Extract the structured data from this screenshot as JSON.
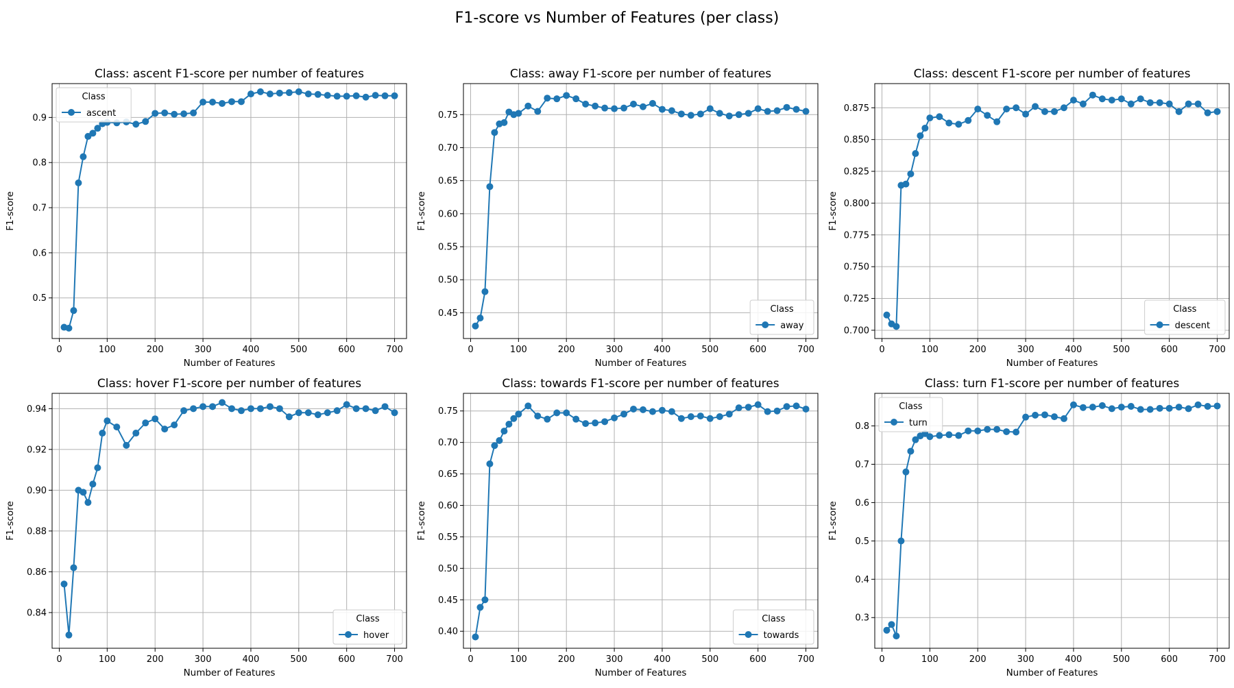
{
  "figure": {
    "title": "F1-score vs Number of Features (per class)"
  },
  "style": {
    "line_color": "#1f77b4",
    "grid_color": "#b0b0b0"
  },
  "chart_data": [
    {
      "type": "line",
      "title": "Class: ascent F1-score per number of features",
      "xlabel": "Number of Features",
      "ylabel": "F1-score",
      "xlim": [
        -15,
        725
      ],
      "ylim": [
        0.41,
        0.975
      ],
      "xticks": [
        0,
        100,
        200,
        300,
        400,
        500,
        600,
        700
      ],
      "yticks": [
        0.5,
        0.6,
        0.7,
        0.8,
        0.9
      ],
      "ytick_labels": [
        "0.5",
        "0.6",
        "0.7",
        "0.8",
        "0.9"
      ],
      "grid": true,
      "legend": {
        "title": "Class",
        "position": "top-left"
      },
      "series": [
        {
          "name": "ascent",
          "x": [
            10,
            20,
            30,
            40,
            50,
            60,
            70,
            80,
            90,
            100,
            120,
            140,
            160,
            180,
            200,
            220,
            240,
            260,
            280,
            300,
            320,
            340,
            360,
            380,
            400,
            420,
            440,
            460,
            480,
            500,
            520,
            540,
            560,
            580,
            600,
            620,
            640,
            660,
            680,
            700
          ],
          "y": [
            0.435,
            0.433,
            0.472,
            0.755,
            0.813,
            0.858,
            0.865,
            0.876,
            0.886,
            0.889,
            0.888,
            0.89,
            0.885,
            0.891,
            0.909,
            0.91,
            0.907,
            0.908,
            0.91,
            0.934,
            0.934,
            0.931,
            0.935,
            0.935,
            0.952,
            0.957,
            0.952,
            0.954,
            0.955,
            0.957,
            0.952,
            0.951,
            0.949,
            0.947,
            0.947,
            0.948,
            0.945,
            0.949,
            0.948,
            0.948
          ]
        }
      ]
    },
    {
      "type": "line",
      "title": "Class: away F1-score per number of features",
      "xlabel": "Number of Features",
      "ylabel": "F1-score",
      "xlim": [
        -15,
        725
      ],
      "ylim": [
        0.411,
        0.797
      ],
      "xticks": [
        0,
        100,
        200,
        300,
        400,
        500,
        600,
        700
      ],
      "yticks": [
        0.45,
        0.5,
        0.55,
        0.6,
        0.65,
        0.7,
        0.75
      ],
      "ytick_labels": [
        "0.45",
        "0.50",
        "0.55",
        "0.60",
        "0.65",
        "0.70",
        "0.75"
      ],
      "grid": true,
      "legend": {
        "title": "Class",
        "position": "lower-right"
      },
      "series": [
        {
          "name": "away",
          "x": [
            10,
            20,
            30,
            40,
            50,
            60,
            70,
            80,
            90,
            100,
            120,
            140,
            160,
            180,
            200,
            220,
            240,
            260,
            280,
            300,
            320,
            340,
            360,
            380,
            400,
            420,
            440,
            460,
            480,
            500,
            520,
            540,
            560,
            580,
            600,
            620,
            640,
            660,
            680,
            700
          ],
          "y": [
            0.43,
            0.442,
            0.482,
            0.641,
            0.723,
            0.736,
            0.738,
            0.754,
            0.75,
            0.752,
            0.763,
            0.755,
            0.775,
            0.774,
            0.779,
            0.774,
            0.766,
            0.763,
            0.76,
            0.759,
            0.76,
            0.766,
            0.762,
            0.767,
            0.758,
            0.756,
            0.751,
            0.749,
            0.751,
            0.759,
            0.752,
            0.748,
            0.75,
            0.752,
            0.759,
            0.755,
            0.756,
            0.761,
            0.758,
            0.755
          ]
        }
      ]
    },
    {
      "type": "line",
      "title": "Class: descent F1-score per number of features",
      "xlabel": "Number of Features",
      "ylabel": "F1-score",
      "xlim": [
        -15,
        725
      ],
      "ylim": [
        0.6935,
        0.894
      ],
      "xticks": [
        0,
        100,
        200,
        300,
        400,
        500,
        600,
        700
      ],
      "yticks": [
        0.7,
        0.725,
        0.75,
        0.775,
        0.8,
        0.825,
        0.85,
        0.875
      ],
      "ytick_labels": [
        "0.700",
        "0.725",
        "0.750",
        "0.775",
        "0.800",
        "0.825",
        "0.850",
        "0.875"
      ],
      "grid": true,
      "legend": {
        "title": "Class",
        "position": "lower-right"
      },
      "series": [
        {
          "name": "descent",
          "x": [
            10,
            20,
            30,
            40,
            50,
            60,
            70,
            80,
            90,
            100,
            120,
            140,
            160,
            180,
            200,
            220,
            240,
            260,
            280,
            300,
            320,
            340,
            360,
            380,
            400,
            420,
            440,
            460,
            480,
            500,
            520,
            540,
            560,
            580,
            600,
            620,
            640,
            660,
            680,
            700
          ],
          "y": [
            0.712,
            0.705,
            0.703,
            0.814,
            0.815,
            0.823,
            0.839,
            0.853,
            0.859,
            0.867,
            0.868,
            0.863,
            0.862,
            0.865,
            0.874,
            0.869,
            0.864,
            0.874,
            0.875,
            0.87,
            0.876,
            0.872,
            0.872,
            0.875,
            0.881,
            0.878,
            0.885,
            0.882,
            0.881,
            0.882,
            0.878,
            0.882,
            0.879,
            0.879,
            0.878,
            0.872,
            0.878,
            0.878,
            0.871,
            0.872
          ]
        }
      ]
    },
    {
      "type": "line",
      "title": "Class: hover F1-score per number of features",
      "xlabel": "Number of Features",
      "ylabel": "F1-score",
      "xlim": [
        -15,
        725
      ],
      "ylim": [
        0.8225,
        0.9475
      ],
      "xticks": [
        0,
        100,
        200,
        300,
        400,
        500,
        600,
        700
      ],
      "yticks": [
        0.84,
        0.86,
        0.88,
        0.9,
        0.92,
        0.94
      ],
      "ytick_labels": [
        "0.84",
        "0.86",
        "0.88",
        "0.90",
        "0.92",
        "0.94"
      ],
      "grid": true,
      "legend": {
        "title": "Class",
        "position": "lower-right"
      },
      "series": [
        {
          "name": "hover",
          "x": [
            10,
            20,
            30,
            40,
            50,
            60,
            70,
            80,
            90,
            100,
            120,
            140,
            160,
            180,
            200,
            220,
            240,
            260,
            280,
            300,
            320,
            340,
            360,
            380,
            400,
            420,
            440,
            460,
            480,
            500,
            520,
            540,
            560,
            580,
            600,
            620,
            640,
            660,
            680,
            700
          ],
          "y": [
            0.854,
            0.829,
            0.862,
            0.9,
            0.899,
            0.894,
            0.903,
            0.911,
            0.928,
            0.934,
            0.931,
            0.922,
            0.928,
            0.933,
            0.935,
            0.93,
            0.932,
            0.939,
            0.94,
            0.941,
            0.941,
            0.943,
            0.94,
            0.939,
            0.94,
            0.94,
            0.941,
            0.94,
            0.936,
            0.938,
            0.938,
            0.937,
            0.938,
            0.939,
            0.942,
            0.94,
            0.94,
            0.939,
            0.941,
            0.938
          ]
        }
      ]
    },
    {
      "type": "line",
      "title": "Class: towards F1-score per number of features",
      "xlabel": "Number of Features",
      "ylabel": "F1-score",
      "xlim": [
        -15,
        725
      ],
      "ylim": [
        0.373,
        0.778
      ],
      "xticks": [
        0,
        100,
        200,
        300,
        400,
        500,
        600,
        700
      ],
      "yticks": [
        0.4,
        0.45,
        0.5,
        0.55,
        0.6,
        0.65,
        0.7,
        0.75
      ],
      "ytick_labels": [
        "0.40",
        "0.45",
        "0.50",
        "0.55",
        "0.60",
        "0.65",
        "0.70",
        "0.75"
      ],
      "grid": true,
      "legend": {
        "title": "Class",
        "position": "lower-right"
      },
      "series": [
        {
          "name": "towards",
          "x": [
            10,
            20,
            30,
            40,
            50,
            60,
            70,
            80,
            90,
            100,
            120,
            140,
            160,
            180,
            200,
            220,
            240,
            260,
            280,
            300,
            320,
            340,
            360,
            380,
            400,
            420,
            440,
            460,
            480,
            500,
            520,
            540,
            560,
            580,
            600,
            620,
            640,
            660,
            680,
            700
          ],
          "y": [
            0.391,
            0.438,
            0.45,
            0.666,
            0.695,
            0.703,
            0.718,
            0.729,
            0.738,
            0.745,
            0.758,
            0.742,
            0.737,
            0.747,
            0.747,
            0.737,
            0.73,
            0.731,
            0.733,
            0.739,
            0.745,
            0.753,
            0.752,
            0.749,
            0.751,
            0.749,
            0.738,
            0.741,
            0.742,
            0.738,
            0.741,
            0.745,
            0.755,
            0.756,
            0.76,
            0.749,
            0.75,
            0.757,
            0.758,
            0.753
          ]
        }
      ]
    },
    {
      "type": "line",
      "title": "Class: turn F1-score per number of features",
      "xlabel": "Number of Features",
      "ylabel": "F1-score",
      "xlim": [
        -15,
        725
      ],
      "ylim": [
        0.22,
        0.885
      ],
      "xticks": [
        0,
        100,
        200,
        300,
        400,
        500,
        600,
        700
      ],
      "yticks": [
        0.3,
        0.4,
        0.5,
        0.6,
        0.7,
        0.8
      ],
      "ytick_labels": [
        "0.3",
        "0.4",
        "0.5",
        "0.6",
        "0.7",
        "0.8"
      ],
      "grid": true,
      "legend": {
        "title": "Class",
        "position": "top-left"
      },
      "series": [
        {
          "name": "turn",
          "x": [
            10,
            20,
            30,
            40,
            50,
            60,
            70,
            80,
            90,
            100,
            120,
            140,
            160,
            180,
            200,
            220,
            240,
            260,
            280,
            300,
            320,
            340,
            360,
            380,
            400,
            420,
            440,
            460,
            480,
            500,
            520,
            540,
            560,
            580,
            600,
            620,
            640,
            660,
            680,
            700
          ],
          "y": [
            0.267,
            0.282,
            0.252,
            0.5,
            0.68,
            0.734,
            0.764,
            0.774,
            0.78,
            0.772,
            0.775,
            0.777,
            0.775,
            0.787,
            0.787,
            0.791,
            0.791,
            0.785,
            0.784,
            0.823,
            0.828,
            0.829,
            0.824,
            0.819,
            0.855,
            0.848,
            0.849,
            0.853,
            0.845,
            0.849,
            0.851,
            0.843,
            0.843,
            0.846,
            0.846,
            0.849,
            0.845,
            0.855,
            0.851,
            0.852
          ]
        }
      ]
    }
  ]
}
